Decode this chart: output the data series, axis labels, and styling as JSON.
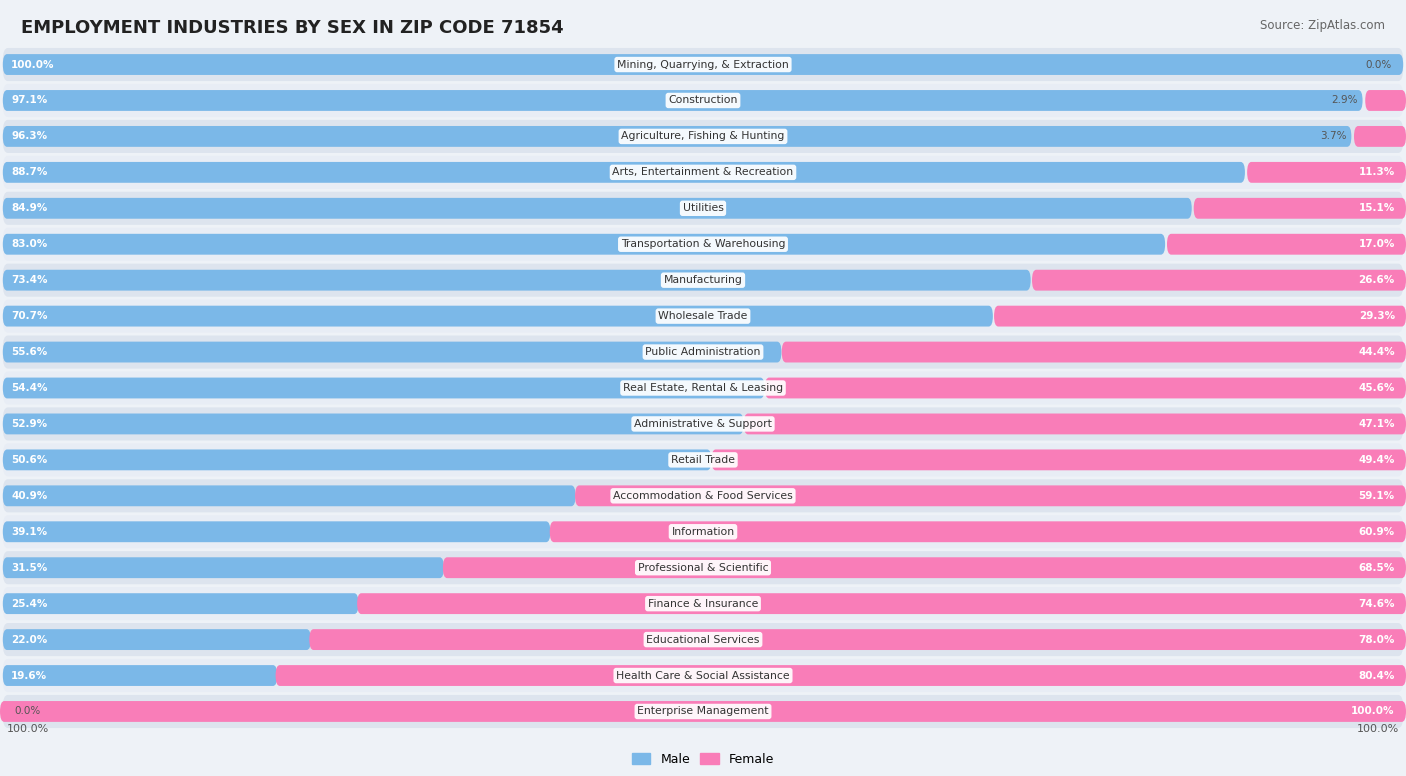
{
  "title": "EMPLOYMENT INDUSTRIES BY SEX IN ZIP CODE 71854",
  "source": "Source: ZipAtlas.com",
  "industries": [
    "Mining, Quarrying, & Extraction",
    "Construction",
    "Agriculture, Fishing & Hunting",
    "Arts, Entertainment & Recreation",
    "Utilities",
    "Transportation & Warehousing",
    "Manufacturing",
    "Wholesale Trade",
    "Public Administration",
    "Real Estate, Rental & Leasing",
    "Administrative & Support",
    "Retail Trade",
    "Accommodation & Food Services",
    "Information",
    "Professional & Scientific",
    "Finance & Insurance",
    "Educational Services",
    "Health Care & Social Assistance",
    "Enterprise Management"
  ],
  "male": [
    100.0,
    97.1,
    96.3,
    88.7,
    84.9,
    83.0,
    73.4,
    70.7,
    55.6,
    54.4,
    52.9,
    50.6,
    40.9,
    39.1,
    31.5,
    25.4,
    22.0,
    19.6,
    0.0
  ],
  "female": [
    0.0,
    2.9,
    3.7,
    11.3,
    15.1,
    17.0,
    26.6,
    29.3,
    44.4,
    45.6,
    47.1,
    49.4,
    59.1,
    60.9,
    68.5,
    74.6,
    78.0,
    80.4,
    100.0
  ],
  "male_color": "#7bb8e8",
  "female_color": "#f97db8",
  "bg_color": "#eef2f7",
  "row_bg_even": "#dde4ee",
  "row_bg_odd": "#e8edf5",
  "title_color": "#222222",
  "source_color": "#666666",
  "label_color": "#333333",
  "pct_inside_color": "#ffffff",
  "pct_outside_color": "#555555"
}
